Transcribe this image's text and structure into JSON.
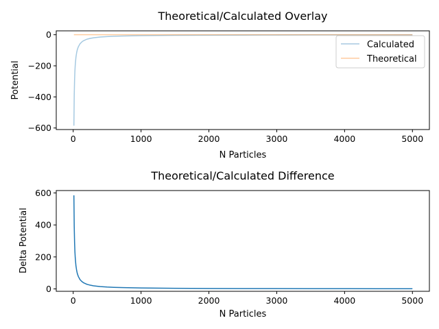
{
  "chart_data": [
    {
      "type": "line",
      "title": "Theoretical/Calculated Overlay",
      "xlabel": "N Particles",
      "ylabel": "Potential",
      "xlim": [
        -250,
        5250
      ],
      "ylim": [
        -610,
        25
      ],
      "xticks": [
        0,
        1000,
        2000,
        3000,
        4000,
        5000
      ],
      "yticks": [
        0,
        -200,
        -400,
        -600
      ],
      "grid": false,
      "legend_position": "top-right",
      "series": [
        {
          "name": "Calculated",
          "color": "#1f77b4",
          "opacity": 0.4,
          "x": [
            10,
            15,
            20,
            25,
            30,
            40,
            50,
            60,
            75,
            100,
            125,
            150,
            200,
            250,
            300,
            400,
            500,
            600,
            750,
            1000,
            1250,
            1500,
            2000,
            2500,
            3000,
            3500,
            4000,
            4500,
            5000
          ],
          "values": [
            -585,
            -390,
            -292,
            -234,
            -195,
            -146,
            -117,
            -97,
            -78,
            -58.5,
            -47,
            -39,
            -29,
            -23.4,
            -19.5,
            -14.6,
            -11.7,
            -9.75,
            -7.8,
            -5.85,
            -4.7,
            -3.9,
            -2.9,
            -2.3,
            -1.95,
            -1.67,
            -1.46,
            -1.3,
            -1.17
          ]
        },
        {
          "name": "Theoretical",
          "color": "#ff7f0e",
          "opacity": 0.4,
          "x": [
            10,
            5000
          ],
          "values": [
            0,
            0
          ]
        }
      ]
    },
    {
      "type": "line",
      "title": "Theoretical/Calculated Difference",
      "xlabel": "N Particles",
      "ylabel": "Delta Potential",
      "xlim": [
        -250,
        5250
      ],
      "ylim": [
        -15,
        615
      ],
      "xticks": [
        0,
        1000,
        2000,
        3000,
        4000,
        5000
      ],
      "yticks": [
        0,
        200,
        400,
        600
      ],
      "grid": false,
      "series": [
        {
          "color": "#1f77b4",
          "opacity": 1,
          "x": [
            10,
            15,
            20,
            25,
            30,
            40,
            50,
            60,
            75,
            100,
            125,
            150,
            200,
            250,
            300,
            400,
            500,
            600,
            750,
            1000,
            1250,
            1500,
            2000,
            2500,
            3000,
            3500,
            4000,
            4500,
            5000
          ],
          "values": [
            585,
            390,
            292,
            234,
            195,
            146,
            117,
            97,
            78,
            58.5,
            47,
            39,
            29,
            23.4,
            19.5,
            14.6,
            11.7,
            9.75,
            7.8,
            5.85,
            4.7,
            3.9,
            2.9,
            2.3,
            1.95,
            1.67,
            1.46,
            1.3,
            1.17
          ]
        }
      ]
    }
  ]
}
